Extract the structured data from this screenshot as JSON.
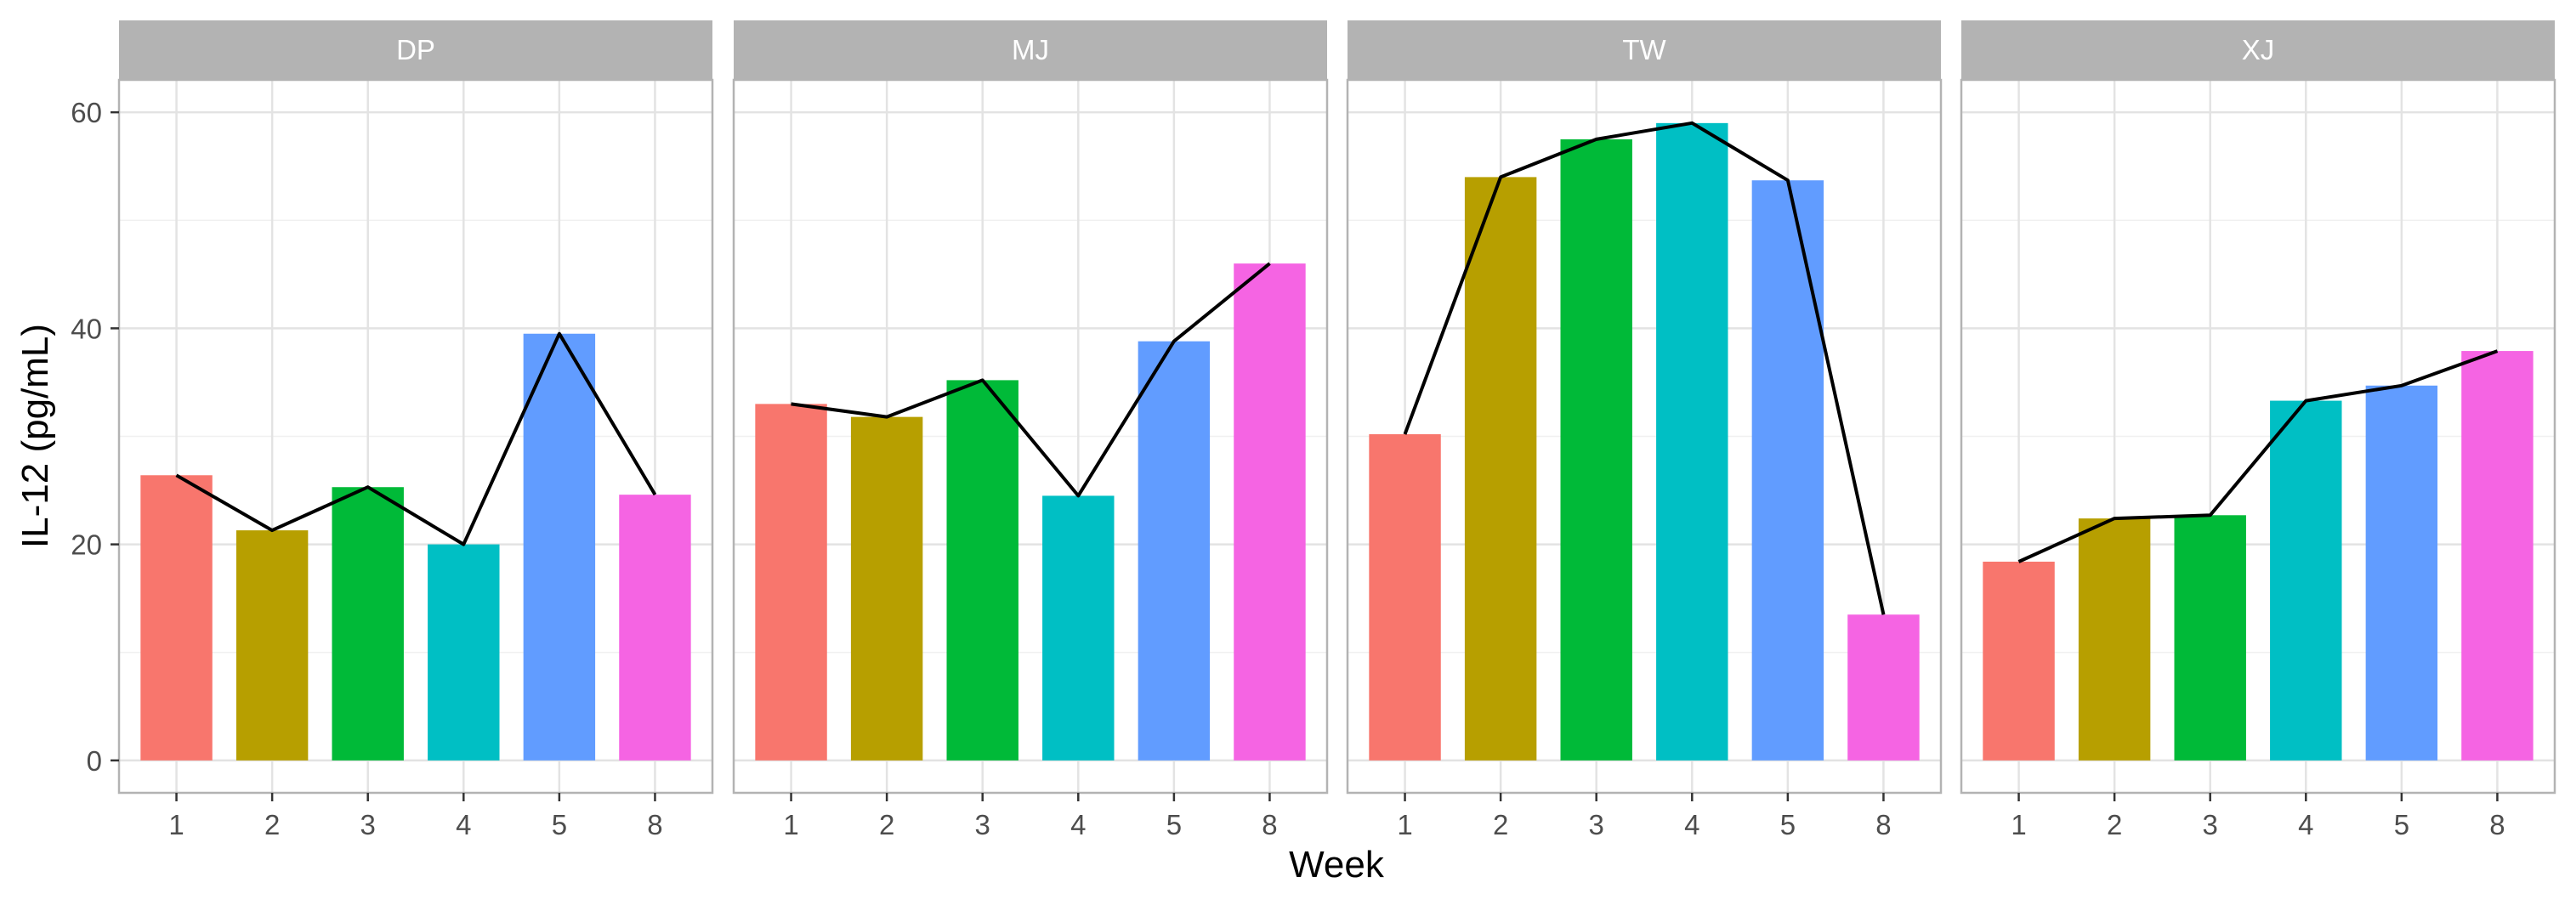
{
  "chart_data": {
    "type": "bar",
    "xlabel": "Week",
    "ylabel": "IL-12 (pg/mL)",
    "categories": [
      "1",
      "2",
      "3",
      "4",
      "5",
      "8"
    ],
    "ylim": [
      -3,
      63
    ],
    "yticks": [
      0,
      20,
      40,
      60
    ],
    "colors": [
      "#F8766D",
      "#B79F00",
      "#00BA38",
      "#00BFC4",
      "#619CFF",
      "#F564E3"
    ],
    "line_color": "#000000",
    "grid": true,
    "legend": "none",
    "panels": [
      {
        "name": "DP",
        "values": [
          26.4,
          21.3,
          25.3,
          20.0,
          39.5,
          24.6
        ]
      },
      {
        "name": "MJ",
        "values": [
          33.0,
          31.8,
          35.2,
          24.5,
          38.8,
          46.0
        ]
      },
      {
        "name": "TW",
        "values": [
          30.2,
          54.0,
          57.5,
          59.0,
          53.7,
          13.5
        ]
      },
      {
        "name": "XJ",
        "values": [
          18.4,
          22.4,
          22.7,
          33.3,
          34.7,
          37.9
        ]
      }
    ]
  }
}
